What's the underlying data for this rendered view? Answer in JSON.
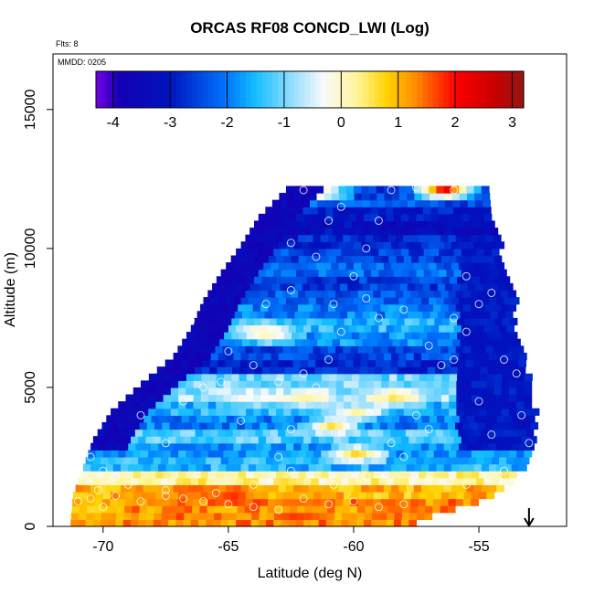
{
  "chart_data": {
    "type": "heatmap",
    "title": "ORCAS RF08 CONCD_LWI (Log)",
    "subtitle_flts": "Flts: 8",
    "subtitle_mmdd": "MMDD: 0205",
    "xlabel": "Latitude (deg N)",
    "ylabel": "Altitude (m)",
    "xlim": [
      -72,
      -51.5
    ],
    "ylim": [
      0,
      17000
    ],
    "xticks": [
      "-70",
      "-65",
      "-60",
      "-55"
    ],
    "xtick_values": [
      -70,
      -65,
      -60,
      -55
    ],
    "yticks": [
      "0",
      "5000",
      "10000",
      "15000"
    ],
    "ytick_values": [
      0,
      5000,
      10000,
      15000
    ],
    "colorbar": {
      "min": -4.3,
      "max": 3.2,
      "ticks": [
        "-4",
        "-3",
        "-2",
        "-1",
        "0",
        "1",
        "2",
        "3"
      ],
      "tick_values": [
        -4,
        -3,
        -2,
        -1,
        0,
        1,
        2,
        3
      ]
    },
    "arrow_marker_lat": -53,
    "data_envelope": {
      "altitude": [
        0,
        1000,
        2000,
        3000,
        4000,
        5000,
        6000,
        7000,
        8000,
        9000,
        10000,
        11000,
        12000
      ],
      "lat_min": [
        -71.3,
        -71.2,
        -70.8,
        -70.4,
        -69.7,
        -68.5,
        -67.2,
        -66.5,
        -66,
        -65.3,
        -64.5,
        -63.8,
        -62.7
      ],
      "lat_max": [
        -57.8,
        -54.5,
        -53.3,
        -52.9,
        -52.9,
        -53.1,
        -53.3,
        -53.7,
        -53.7,
        -54.1,
        -54.3,
        -54.7,
        -54.9
      ]
    },
    "layers": [
      {
        "alt": 500,
        "value": 1.3
      },
      {
        "alt": 1000,
        "value": 1.0
      },
      {
        "alt": 1500,
        "value": 0.2
      },
      {
        "alt": 2000,
        "value": -1.5
      },
      {
        "alt": 2500,
        "value": -1.8
      },
      {
        "alt": 3000,
        "value": -1.2
      },
      {
        "alt": 3500,
        "value": -2.0
      },
      {
        "alt": 4000,
        "value": -1.5
      },
      {
        "alt": 4500,
        "value": -0.8
      },
      {
        "alt": 5000,
        "value": -1.0
      },
      {
        "alt": 5500,
        "value": -2.8
      },
      {
        "alt": 6000,
        "value": -2.5
      },
      {
        "alt": 6500,
        "value": -1.8
      },
      {
        "alt": 7000,
        "value": -1.5
      },
      {
        "alt": 7500,
        "value": -2.0
      },
      {
        "alt": 8000,
        "value": -2.3
      },
      {
        "alt": 8500,
        "value": -2.6
      },
      {
        "alt": 9000,
        "value": -2.2
      },
      {
        "alt": 9500,
        "value": -2.5
      },
      {
        "alt": 10000,
        "value": -2.8
      },
      {
        "alt": 10500,
        "value": -3.3
      },
      {
        "alt": 11000,
        "value": -3.0
      },
      {
        "alt": 11500,
        "value": -2.4
      },
      {
        "alt": 12000,
        "value": -2.6
      }
    ],
    "hot_spots": [
      {
        "lat": -65.0,
        "alt": 1000,
        "value": 1.8
      },
      {
        "lat": -66.5,
        "alt": 1200,
        "value": 1.6
      },
      {
        "lat": -62.0,
        "alt": 800,
        "value": 1.4
      },
      {
        "lat": -58.5,
        "alt": 500,
        "value": 1.5
      },
      {
        "lat": -68.5,
        "alt": 1000,
        "value": 1.3
      },
      {
        "lat": -60.0,
        "alt": 2500,
        "value": 0.9
      },
      {
        "lat": -61.0,
        "alt": 3500,
        "value": 0.7
      },
      {
        "lat": -62.0,
        "alt": 4500,
        "value": 0.3
      },
      {
        "lat": -58.5,
        "alt": 4500,
        "value": 0.6
      },
      {
        "lat": -61.5,
        "alt": 11900,
        "value": 0.8
      },
      {
        "lat": -56.5,
        "alt": 12000,
        "value": 2.5
      },
      {
        "lat": -64.0,
        "alt": 7000,
        "value": -0.3
      },
      {
        "lat": -63.5,
        "alt": 6800,
        "value": 0.2
      },
      {
        "lat": -64.5,
        "alt": 4500,
        "value": -0.2
      },
      {
        "lat": -60.0,
        "alt": 4000,
        "value": 0.4
      },
      {
        "lat": -70.5,
        "alt": 500,
        "value": 0.6
      }
    ],
    "flight_points": [
      [
        -71.0,
        900
      ],
      [
        -70.5,
        1000
      ],
      [
        -70.0,
        700
      ],
      [
        -69.5,
        1100
      ],
      [
        -68.5,
        900
      ],
      [
        -67.5,
        1100
      ],
      [
        -66.8,
        1000
      ],
      [
        -66.0,
        900
      ],
      [
        -65.0,
        800
      ],
      [
        -64.0,
        700
      ],
      [
        -63.0,
        600
      ],
      [
        -62.0,
        1000
      ],
      [
        -61.0,
        800
      ],
      [
        -60.0,
        900
      ],
      [
        -59.0,
        700
      ],
      [
        -58.0,
        800
      ],
      [
        -70.8,
        3000
      ],
      [
        -70.5,
        2500
      ],
      [
        -70.0,
        2000
      ],
      [
        -69.5,
        1800
      ],
      [
        -68.5,
        4000
      ],
      [
        -67.5,
        3000
      ],
      [
        -66.8,
        4500
      ],
      [
        -66.0,
        5000
      ],
      [
        -65.3,
        5200
      ],
      [
        -65.0,
        6300
      ],
      [
        -64.5,
        3800
      ],
      [
        -63.0,
        2500
      ],
      [
        -62.5,
        3500
      ],
      [
        -62.0,
        5500
      ],
      [
        -61.5,
        5000
      ],
      [
        -61.0,
        6000
      ],
      [
        -60.5,
        7000
      ],
      [
        -60.0,
        9000
      ],
      [
        -59.5,
        10000
      ],
      [
        -59.0,
        11000
      ],
      [
        -58.5,
        3000
      ],
      [
        -58.0,
        2500
      ],
      [
        -57.5,
        4000
      ],
      [
        -57.0,
        3500
      ],
      [
        -56.5,
        5800
      ],
      [
        -56.0,
        7500
      ],
      [
        -55.5,
        7000
      ],
      [
        -55.0,
        8000
      ],
      [
        -54.5,
        8400
      ],
      [
        -54.0,
        6000
      ],
      [
        -53.5,
        5500
      ],
      [
        -53.3,
        4000
      ],
      [
        -53.0,
        3000
      ],
      [
        -62.5,
        10200
      ],
      [
        -62.0,
        12100
      ],
      [
        -61.0,
        11000
      ],
      [
        -60.5,
        11500
      ],
      [
        -59.5,
        8200
      ],
      [
        -58.5,
        12100
      ],
      [
        -57.5,
        12200
      ],
      [
        -56.0,
        12100
      ],
      [
        -55.5,
        9000
      ],
      [
        -63.5,
        8000
      ],
      [
        -66.5,
        7400
      ],
      [
        -67.0,
        8200
      ],
      [
        -64.0,
        5800
      ],
      [
        -63.0,
        5200
      ],
      [
        -62.5,
        8500
      ],
      [
        -61.5,
        9700
      ],
      [
        -60.8,
        8000
      ],
      [
        -59.0,
        7500
      ],
      [
        -58.0,
        7800
      ],
      [
        -57.0,
        6500
      ],
      [
        -56.0,
        6000
      ],
      [
        -55.0,
        4500
      ],
      [
        -54.5,
        3300
      ],
      [
        -54.0,
        2000
      ],
      [
        -55.5,
        1500
      ],
      [
        -57.0,
        1700
      ],
      [
        -59.5,
        1800
      ],
      [
        -60.8,
        1500
      ],
      [
        -62.5,
        2000
      ],
      [
        -64.0,
        1500
      ],
      [
        -65.5,
        1200
      ],
      [
        -67.5,
        1300
      ],
      [
        -69.0,
        1500
      ],
      [
        -70.2,
        1300
      ],
      [
        -71.0,
        1700
      ]
    ]
  }
}
